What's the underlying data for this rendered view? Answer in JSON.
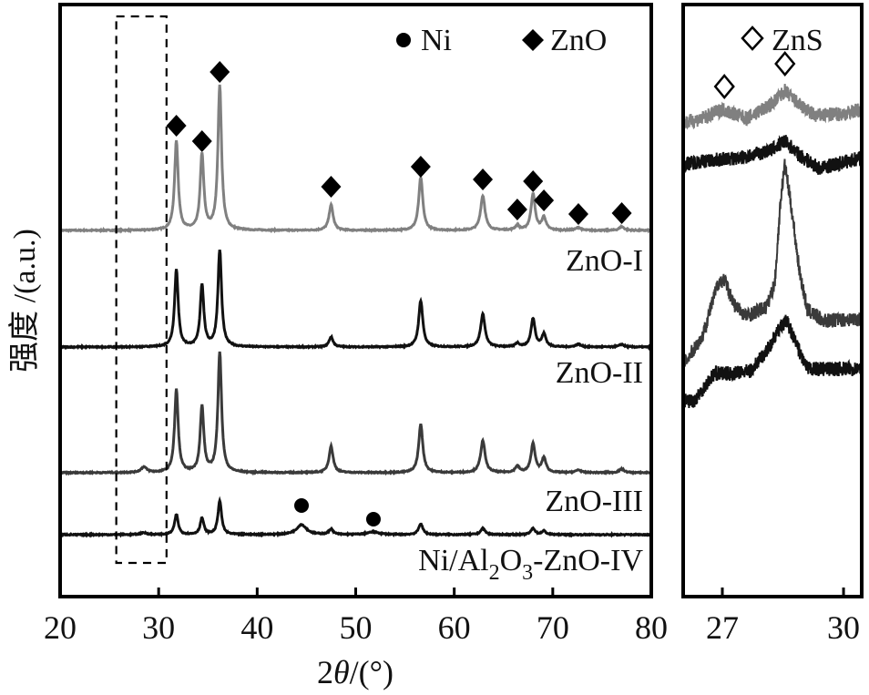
{
  "chart_data": [
    {
      "type": "line",
      "xlabel_prefix": "2",
      "xlabel_symbol": "θ",
      "xlabel_unit": "/(°)",
      "ylabel": "强度 /(a.u.)",
      "xlim": [
        20,
        80
      ],
      "ylim": [
        0,
        650
      ],
      "xticks": [
        20,
        30,
        40,
        50,
        60,
        70,
        80
      ],
      "grid": false,
      "legend": {
        "placement": "top-right",
        "entries": [
          {
            "marker": "circle",
            "label": "Ni"
          },
          {
            "marker": "filled-diamond",
            "label": "ZnO"
          }
        ]
      },
      "highlight_box": {
        "x": [
          25.7,
          30.8
        ],
        "y": [
          37,
          637
        ],
        "style": "dashed"
      },
      "series": [
        {
          "name": "ZnO-I",
          "color": "#808080",
          "baseline": 402,
          "peaks": [
            [
              31.8,
              98,
              0.22
            ],
            [
              34.4,
              83,
              0.22
            ],
            [
              36.2,
              158,
              0.22
            ],
            [
              47.5,
              28,
              0.25
            ],
            [
              56.6,
              58,
              0.25
            ],
            [
              62.9,
              38,
              0.27
            ],
            [
              66.4,
              5,
              0.25
            ],
            [
              68.0,
              40,
              0.25
            ],
            [
              69.1,
              14,
              0.25
            ],
            [
              72.6,
              3,
              0.3
            ],
            [
              77.0,
              4,
              0.3
            ]
          ]
        },
        {
          "name": "ZnO-II",
          "color": "#111111",
          "baseline": 274,
          "peaks": [
            [
              31.8,
              85,
              0.22
            ],
            [
              34.4,
              68,
              0.22
            ],
            [
              36.2,
              106,
              0.22
            ],
            [
              47.5,
              11,
              0.25
            ],
            [
              56.6,
              51,
              0.25
            ],
            [
              62.9,
              36,
              0.27
            ],
            [
              66.4,
              4,
              0.25
            ],
            [
              68.0,
              31,
              0.25
            ],
            [
              69.1,
              14,
              0.25
            ],
            [
              72.6,
              3,
              0.3
            ],
            [
              77.0,
              3,
              0.3
            ]
          ]
        },
        {
          "name": "ZnO-III",
          "color": "#3a3a3a",
          "baseline": 136,
          "peaks": [
            [
              28.5,
              6,
              0.35
            ],
            [
              31.8,
              91,
              0.22
            ],
            [
              34.4,
              72,
              0.22
            ],
            [
              36.2,
              132,
              0.22
            ],
            [
              47.5,
              29,
              0.25
            ],
            [
              56.6,
              53,
              0.25
            ],
            [
              62.9,
              35,
              0.27
            ],
            [
              66.4,
              7,
              0.25
            ],
            [
              68.0,
              32,
              0.25
            ],
            [
              69.1,
              16,
              0.25
            ],
            [
              72.6,
              3,
              0.3
            ],
            [
              77.0,
              4,
              0.3
            ]
          ]
        },
        {
          "name": "Ni/Al2O3-ZnO-IV",
          "label_main": "Ni/Al",
          "label_sub1": "2",
          "label_mid": "O",
          "label_sub2": "3",
          "label_tail": "-ZnO-IV",
          "color": "#111111",
          "baseline": 68,
          "peaks": [
            [
              28.5,
              2,
              0.4
            ],
            [
              31.8,
              22,
              0.22
            ],
            [
              34.4,
              18,
              0.22
            ],
            [
              36.2,
              37,
              0.22
            ],
            [
              44.5,
              11,
              0.6
            ],
            [
              47.5,
              6,
              0.25
            ],
            [
              51.8,
              3,
              0.7
            ],
            [
              56.6,
              12,
              0.25
            ],
            [
              62.9,
              7,
              0.27
            ],
            [
              68.0,
              7,
              0.25
            ],
            [
              69.1,
              4,
              0.25
            ]
          ]
        }
      ],
      "markers": {
        "ZnO": [
          [
            31.8,
            517
          ],
          [
            34.4,
            500
          ],
          [
            36.2,
            576
          ],
          [
            47.5,
            450
          ],
          [
            56.6,
            472
          ],
          [
            62.9,
            458
          ],
          [
            66.4,
            425
          ],
          [
            68.0,
            456
          ],
          [
            69.1,
            435
          ],
          [
            72.6,
            420
          ],
          [
            77.0,
            421
          ]
        ],
        "Ni": [
          [
            44.5,
            100
          ],
          [
            51.8,
            85
          ]
        ]
      }
    },
    {
      "type": "line",
      "xlim": [
        26.03,
        30.45
      ],
      "ylim": [
        0,
        650
      ],
      "xticks": [
        27,
        30
      ],
      "grid": false,
      "legend": {
        "placement": "top",
        "entries": [
          {
            "marker": "open-diamond",
            "label": "ZnS"
          }
        ]
      },
      "series": [
        {
          "name": "ZnO-I",
          "color": "#808080",
          "points": [
            [
              26.03,
              520
            ],
            [
              26.5,
              525
            ],
            [
              27.0,
              535
            ],
            [
              27.6,
              525
            ],
            [
              28.2,
              540
            ],
            [
              28.55,
              555
            ],
            [
              28.9,
              540
            ],
            [
              29.3,
              528
            ],
            [
              30.0,
              530
            ],
            [
              30.45,
              535
            ]
          ]
        },
        {
          "name": "ZnO-II",
          "color": "#111111",
          "points": [
            [
              26.03,
              475
            ],
            [
              26.5,
              478
            ],
            [
              27.5,
              482
            ],
            [
              28.2,
              490
            ],
            [
              28.55,
              500
            ],
            [
              28.9,
              485
            ],
            [
              29.4,
              470
            ],
            [
              30.45,
              482
            ]
          ]
        },
        {
          "name": "ZnO-III",
          "color": "#3a3a3a",
          "points": [
            [
              26.03,
              255
            ],
            [
              26.5,
              285
            ],
            [
              26.9,
              345
            ],
            [
              27.05,
              348
            ],
            [
              27.3,
              320
            ],
            [
              27.6,
              308
            ],
            [
              28.1,
              318
            ],
            [
              28.3,
              345
            ],
            [
              28.45,
              440
            ],
            [
              28.55,
              475
            ],
            [
              28.7,
              430
            ],
            [
              28.9,
              360
            ],
            [
              29.1,
              315
            ],
            [
              29.5,
              303
            ],
            [
              30.45,
              305
            ]
          ]
        },
        {
          "name": "Ni/Al2O3-ZnO-IV",
          "color": "#111111",
          "points": [
            [
              26.03,
              215
            ],
            [
              26.3,
              215
            ],
            [
              26.8,
              245
            ],
            [
              27.3,
              245
            ],
            [
              27.7,
              248
            ],
            [
              28.1,
              270
            ],
            [
              28.5,
              300
            ],
            [
              28.6,
              302
            ],
            [
              28.85,
              275
            ],
            [
              29.1,
              250
            ],
            [
              30.45,
              250
            ]
          ]
        }
      ],
      "markers": {
        "ZnS": [
          [
            27.05,
            560
          ],
          [
            28.55,
            585
          ]
        ]
      }
    }
  ]
}
